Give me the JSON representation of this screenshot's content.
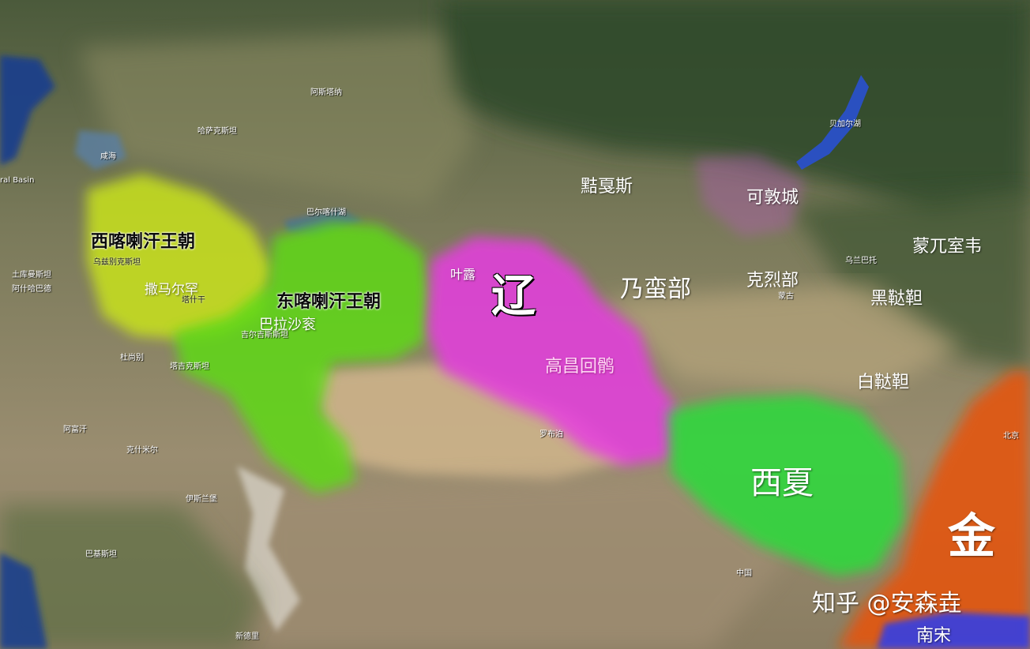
{
  "regions": {
    "west_karakhanid": "西喀喇汗王朝",
    "east_karakhanid": "东喀喇汗王朝",
    "liao": "辽",
    "xixia": "西夏",
    "jin": "金",
    "southern_song": "南宋",
    "qocho_uyghur": "高昌回鹘",
    "naiman": "乃蛮部",
    "kerait": "克烈部",
    "kirghiz": "黠戛斯",
    "kedun_city": "可敦城",
    "mongol_shiwei": "蒙兀室韦",
    "black_tatars": "黑鞑靼",
    "white_tatars": "白鞑靼"
  },
  "cities": {
    "samarkand": "撒马尔罕",
    "balasagun": "巴拉沙衮",
    "yeluo": "叶露"
  },
  "basemap_labels": {
    "kazakhstan": "哈萨克斯坦",
    "uzbekistan": "乌兹别克斯坦",
    "turkmenistan": "土库曼斯坦",
    "ashgabat": "阿什哈巴德",
    "afghanistan": "阿富汗",
    "kashmir": "克什米尔",
    "islamabad": "伊斯兰堡",
    "pakistan": "巴基斯坦",
    "delhi": "新德里",
    "dushanbe": "杜尚别",
    "tajikistan": "塔吉克斯坦",
    "kyrgyzstan": "吉尔吉斯斯坦",
    "lake_balkhash": "巴尔喀什湖",
    "aral_sea": "咸海",
    "caspian_basin": "ral Basin",
    "tashkent": "塔什干",
    "astana": "阿斯塔纳",
    "lop_nur": "罗布泊",
    "baikal": "贝加尔湖",
    "ulaanbaatar": "乌兰巴托",
    "mongolia": "蒙古",
    "china": "中国",
    "beijing": "北京"
  },
  "watermark": "知乎 @安森垚",
  "colors": {
    "west_karakhanid": "#c8e21a",
    "east_karakhanid": "#5fd919",
    "liao": "#e63ee0",
    "xixia": "#2bdc3a",
    "jin": "#e5540d",
    "southern_song": "#2b3ef0",
    "kedun_tint": "#c056c8"
  }
}
